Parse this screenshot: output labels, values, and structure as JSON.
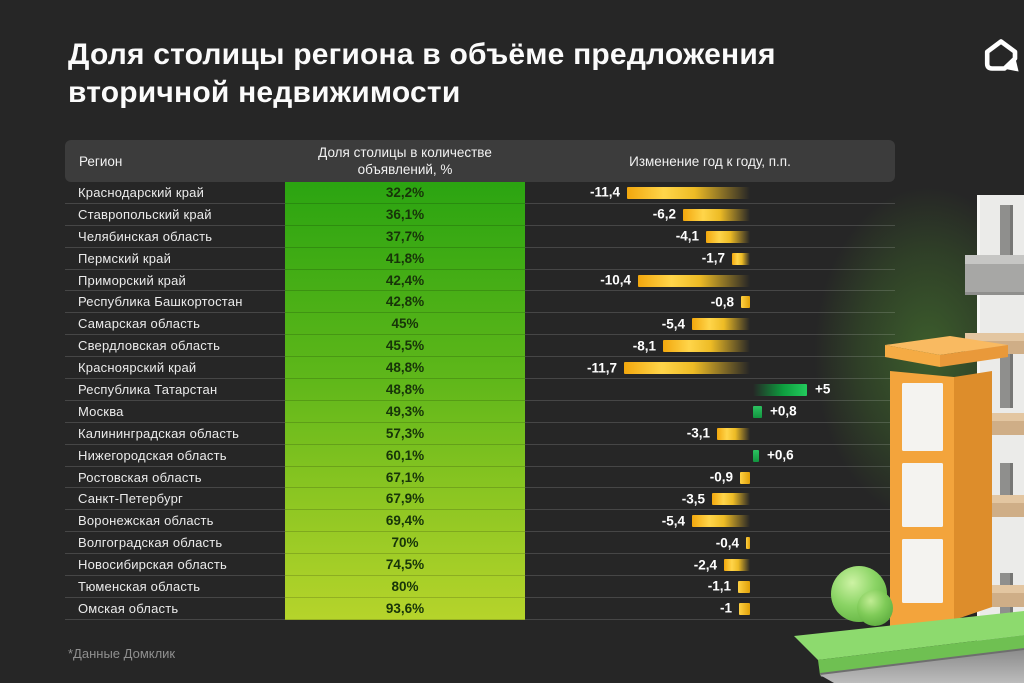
{
  "page": {
    "title_line1": "Доля столицы региона в объёме предложения",
    "title_line2": "вторичной недвижимости",
    "footnote": "*Данные Домклик"
  },
  "logo": {
    "name": "domclick-house-logo"
  },
  "table": {
    "headers": {
      "region": "Регион",
      "share": "Доля столицы в количестве объявлений, %",
      "change": "Изменение год к году, п.п."
    },
    "rows": [
      {
        "region": "Краснодарский край",
        "share": "32,2%",
        "change": "-11,4"
      },
      {
        "region": "Ставропольский край",
        "share": "36,1%",
        "change": "-6,2"
      },
      {
        "region": "Челябинская область",
        "share": "37,7%",
        "change": "-4,1"
      },
      {
        "region": "Пермский край",
        "share": "41,8%",
        "change": "-1,7"
      },
      {
        "region": "Приморский край",
        "share": "42,4%",
        "change": "-10,4"
      },
      {
        "region": "Республика Башкортостан",
        "share": "42,8%",
        "change": "-0,8"
      },
      {
        "region": "Самарская область",
        "share": "45%",
        "change": "-5,4"
      },
      {
        "region": "Свердловская область",
        "share": "45,5%",
        "change": "-8,1"
      },
      {
        "region": "Красноярский край",
        "share": "48,8%",
        "change": "-11,7"
      },
      {
        "region": "Республика Татарстан",
        "share": "48,8%",
        "change": "+5"
      },
      {
        "region": "Москва",
        "share": "49,3%",
        "change": "+0,8"
      },
      {
        "region": "Калининградская область",
        "share": "57,3%",
        "change": "-3,1"
      },
      {
        "region": "Нижегородская область",
        "share": "60,1%",
        "change": "+0,6"
      },
      {
        "region": "Ростовская область",
        "share": "67,1%",
        "change": "-0,9"
      },
      {
        "region": "Санкт-Петербург",
        "share": "67,9%",
        "change": "-3,5"
      },
      {
        "region": "Воронежская область",
        "share": "69,4%",
        "change": "-5,4"
      },
      {
        "region": "Волгоградская область",
        "share": "70%",
        "change": "-0,4"
      },
      {
        "region": "Новосибирская область",
        "share": "74,5%",
        "change": "-2,4"
      },
      {
        "region": "Тюменская область",
        "share": "80%",
        "change": "-1,1"
      },
      {
        "region": "Омская область",
        "share": "93,6%",
        "change": "-1"
      }
    ]
  },
  "colors": {
    "background": "#262626",
    "header_bg": "#3c3c3c",
    "share_gradient_top": "#2BA411",
    "share_gradient_bottom": "#B6D42B",
    "negative_bar_yellow": "#FFD54A",
    "positive_bar_green": "#23CB5D"
  },
  "chart_data": {
    "type": "bar",
    "orientation": "horizontal",
    "title": "Доля столицы региона в объёме предложения вторичной недвижимости",
    "categories": [
      "Краснодарский край",
      "Ставропольский край",
      "Челябинская область",
      "Пермский край",
      "Приморский край",
      "Республика Башкортостан",
      "Самарская область",
      "Свердловская область",
      "Красноярский край",
      "Республика Татарстан",
      "Москва",
      "Калининградская область",
      "Нижегородская область",
      "Ростовская область",
      "Санкт-Петербург",
      "Воронежская область",
      "Волгоградская область",
      "Новосибирская область",
      "Тюменская область",
      "Омская область"
    ],
    "series": [
      {
        "name": "Доля столицы в количестве объявлений, %",
        "values": [
          32.2,
          36.1,
          37.7,
          41.8,
          42.4,
          42.8,
          45,
          45.5,
          48.8,
          48.8,
          49.3,
          57.3,
          60.1,
          67.1,
          67.9,
          69.4,
          70,
          74.5,
          80,
          93.6
        ]
      },
      {
        "name": "Изменение год к году, п.п.",
        "values": [
          -11.4,
          -6.2,
          -4.1,
          -1.7,
          -10.4,
          -0.8,
          -5.4,
          -8.1,
          -11.7,
          5,
          0.8,
          -3.1,
          0.6,
          -0.9,
          -3.5,
          -5.4,
          -0.4,
          -2.4,
          -1.1,
          -1
        ]
      }
    ],
    "legend": false,
    "grid": false,
    "source": "*Данные Домклик",
    "notes": "share column rendered as green heat gradient; change column as diverging bars (yellow negative left, green positive right), baseline at 0"
  }
}
